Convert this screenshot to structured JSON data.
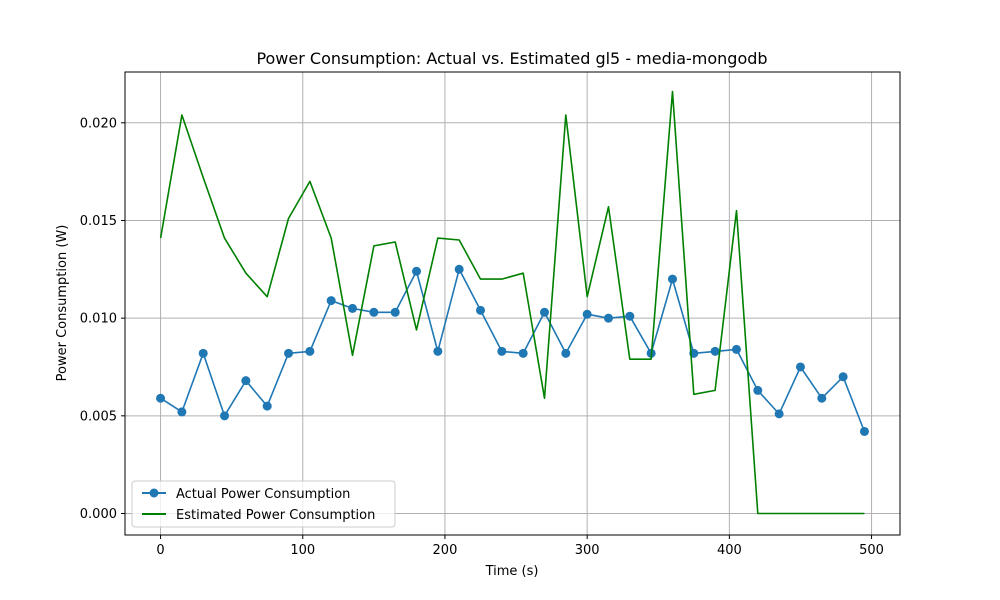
{
  "chart_data": {
    "type": "line",
    "title": "Power Consumption: Actual vs. Estimated gl5 - media-mongodb",
    "xlabel": "Time (s)",
    "ylabel": "Power Consumption (W)",
    "xlim": [
      -25,
      520
    ],
    "ylim": [
      -0.0011,
      0.0226
    ],
    "xticks": [
      0,
      100,
      200,
      300,
      400,
      500
    ],
    "xtick_labels": [
      "0",
      "100",
      "200",
      "300",
      "400",
      "500"
    ],
    "yticks": [
      0.0,
      0.005,
      0.01,
      0.015,
      0.02
    ],
    "ytick_labels": [
      "0.000",
      "0.005",
      "0.010",
      "0.015",
      "0.020"
    ],
    "grid": true,
    "legend_position": "lower-left",
    "series": [
      {
        "name": "Actual Power Consumption",
        "color": "#1f77b4",
        "marker": "circle",
        "x": [
          0,
          15,
          30,
          45,
          60,
          75,
          90,
          105,
          120,
          135,
          150,
          165,
          180,
          195,
          210,
          225,
          240,
          255,
          270,
          285,
          300,
          315,
          330,
          345,
          360,
          375,
          390,
          405,
          420,
          435,
          450,
          465,
          480,
          495
        ],
        "y": [
          0.0059,
          0.0052,
          0.0082,
          0.005,
          0.0068,
          0.0055,
          0.0082,
          0.0083,
          0.0109,
          0.0105,
          0.0103,
          0.0103,
          0.0124,
          0.0083,
          0.0125,
          0.0104,
          0.0083,
          0.0082,
          0.0103,
          0.0082,
          0.0102,
          0.01,
          0.0101,
          0.0082,
          0.012,
          0.0082,
          0.0083,
          0.0084,
          0.0063,
          0.0051,
          0.0075,
          0.0059,
          0.007,
          0.0042
        ]
      },
      {
        "name": "Estimated Power Consumption",
        "color": "#008000",
        "marker": "none",
        "x": [
          0,
          15,
          30,
          45,
          60,
          75,
          90,
          105,
          120,
          135,
          150,
          165,
          180,
          195,
          210,
          225,
          240,
          255,
          270,
          285,
          300,
          315,
          330,
          345,
          360,
          375,
          390,
          405,
          420,
          435,
          450,
          465,
          480,
          495
        ],
        "y": [
          0.0141,
          0.0204,
          0.0172,
          0.0141,
          0.0123,
          0.0111,
          0.0151,
          0.017,
          0.0141,
          0.0081,
          0.0137,
          0.0139,
          0.0094,
          0.0141,
          0.014,
          0.012,
          0.012,
          0.0123,
          0.0059,
          0.0204,
          0.0111,
          0.0157,
          0.0079,
          0.0079,
          0.0216,
          0.0061,
          0.0063,
          0.0155,
          0.0,
          0.0,
          0.0,
          0.0,
          0.0,
          0.0
        ]
      }
    ]
  }
}
